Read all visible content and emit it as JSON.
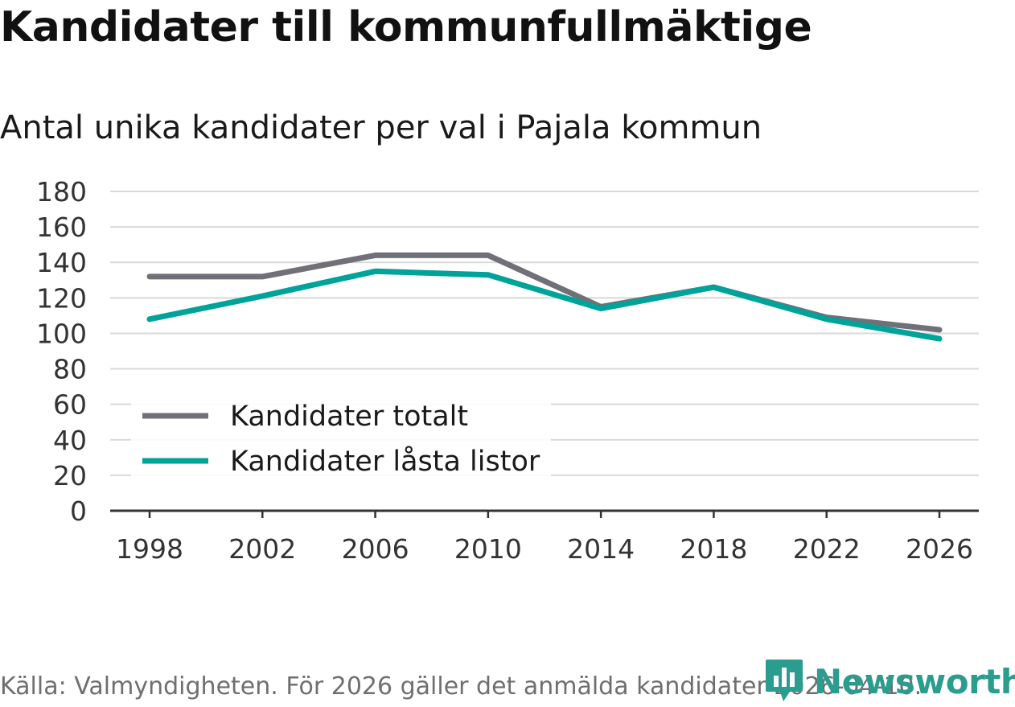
{
  "header": {
    "title": "Kandidater till kommunfullmäktige",
    "subtitle": "Antal unika kandidater per val i Pajala kommun"
  },
  "footer": {
    "source": "Källa: Valmyndigheten. För 2026 gäller det anmälda kandidater 2026-04-10.",
    "logo_text": "Newsworthy",
    "logo_icon": "bar-chart-speech-bubble-icon"
  },
  "colors": {
    "series_total": "#707078",
    "series_locked": "#00a39a",
    "grid": "#d9d9d9",
    "axis": "#333333",
    "logo": "#2a9d8f"
  },
  "chart_data": {
    "type": "line",
    "title": "Kandidater till kommunfullmäktige",
    "subtitle": "Antal unika kandidater per val i Pajala kommun",
    "xlabel": "",
    "ylabel": "",
    "x": [
      "1998",
      "2002",
      "2006",
      "2010",
      "2014",
      "2018",
      "2022",
      "2026"
    ],
    "ylim": [
      0,
      180
    ],
    "yticks": [
      0,
      20,
      40,
      60,
      80,
      100,
      120,
      140,
      160,
      180
    ],
    "grid": true,
    "legend_position": "bottom-left",
    "series": [
      {
        "name": "Kandidater totalt",
        "color": "#707078",
        "values": [
          132,
          132,
          144,
          144,
          115,
          126,
          109,
          102
        ]
      },
      {
        "name": "Kandidater låsta listor",
        "color": "#00a39a",
        "values": [
          108,
          121,
          135,
          133,
          114,
          126,
          108,
          97
        ]
      }
    ]
  }
}
